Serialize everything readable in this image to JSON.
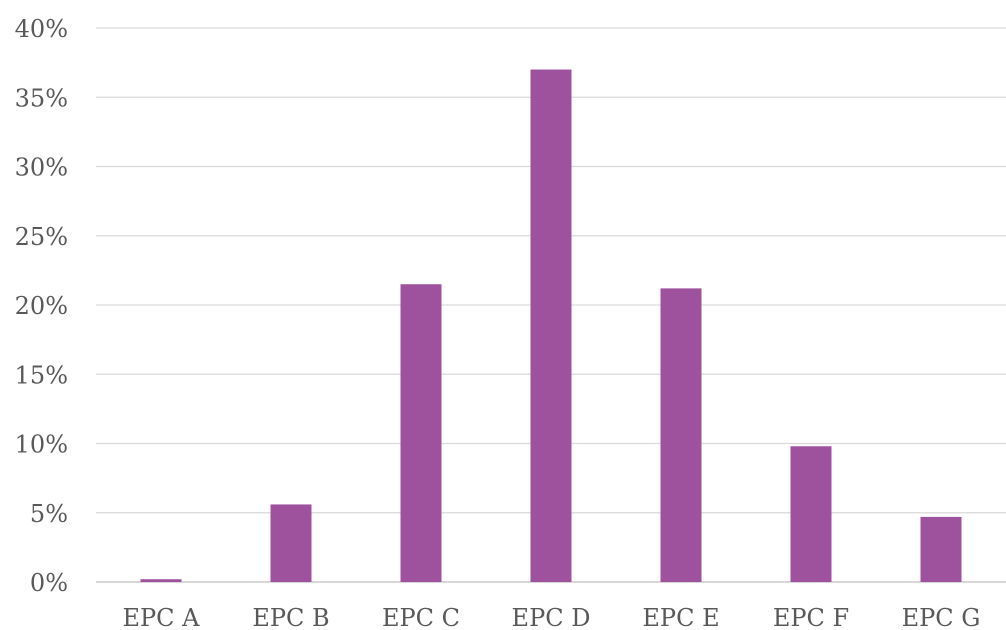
{
  "chart_data": {
    "type": "bar",
    "title": "",
    "xlabel": "",
    "ylabel": "",
    "categories": [
      "EPC A",
      "EPC B",
      "EPC C",
      "EPC D",
      "EPC E",
      "EPC F",
      "EPC G"
    ],
    "values": [
      0.2,
      5.6,
      21.5,
      37.0,
      21.2,
      9.8,
      4.7
    ],
    "ylim": [
      0,
      40
    ],
    "ytick_values": [
      0,
      5,
      10,
      15,
      20,
      25,
      30,
      35,
      40
    ],
    "ytick_labels": [
      "0%",
      "5%",
      "10%",
      "15%",
      "20%",
      "25%",
      "30%",
      "35%",
      "40%"
    ],
    "grid": true,
    "legend": "none",
    "bar_color": "#9e529e",
    "grid_color": "#d9d9d9",
    "tick_label_color": "#595959"
  }
}
